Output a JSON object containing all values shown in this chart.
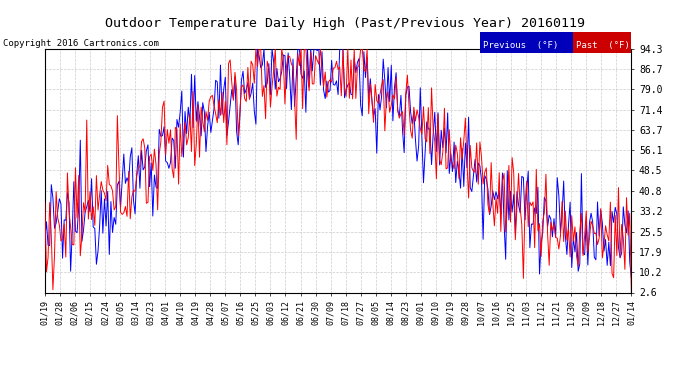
{
  "title": "Outdoor Temperature Daily High (Past/Previous Year) 20160119",
  "copyright": "Copyright 2016 Cartronics.com",
  "legend_previous": "Previous  (°F)",
  "legend_past": "Past  (°F)",
  "legend_previous_color": "#0000ff",
  "legend_past_color": "#ff0000",
  "legend_previous_bg": "#0000bb",
  "legend_past_bg": "#cc0000",
  "yticks": [
    2.6,
    10.2,
    17.9,
    25.5,
    33.2,
    40.8,
    48.5,
    56.1,
    63.7,
    71.4,
    79.0,
    86.7,
    94.3
  ],
  "ylim": [
    2.6,
    94.3
  ],
  "background_color": "#ffffff",
  "grid_color": "#cccccc",
  "line_width": 0.7,
  "x_labels": [
    "01/19",
    "01/28",
    "02/06",
    "02/15",
    "02/24",
    "03/05",
    "03/14",
    "03/23",
    "04/01",
    "04/10",
    "04/19",
    "04/28",
    "05/07",
    "05/16",
    "05/25",
    "06/03",
    "06/12",
    "06/21",
    "06/30",
    "07/09",
    "07/18",
    "07/27",
    "08/05",
    "08/14",
    "08/23",
    "09/01",
    "09/10",
    "09/19",
    "09/28",
    "10/07",
    "10/16",
    "10/25",
    "11/03",
    "11/12",
    "11/21",
    "11/30",
    "12/09",
    "12/18",
    "12/27",
    "01/14"
  ]
}
